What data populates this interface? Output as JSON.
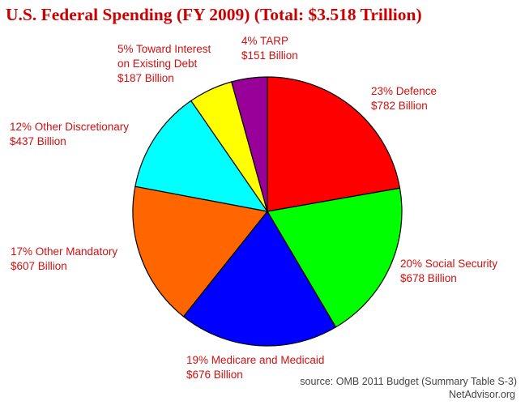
{
  "chart_data": {
    "type": "pie",
    "title": "U.S. Federal Spending (FY 2009) (Total: $3.518 Trillion)",
    "slices": [
      {
        "label": "23% Defence",
        "value": 782,
        "value_label": "$782 Billion",
        "color": "#ff0000"
      },
      {
        "label": "20% Social Security",
        "value": 678,
        "value_label": "$678 Billion",
        "color": "#00ff00"
      },
      {
        "label": "19% Medicare and Medicaid",
        "value": 676,
        "value_label": "$676 Billion",
        "color": "#0000ff"
      },
      {
        "label": "17% Other Mandatory",
        "value": 607,
        "value_label": "$607 Billion",
        "color": "#ff6600"
      },
      {
        "label": "12% Other Discretionary",
        "value": 437,
        "value_label": "$437 Billion",
        "color": "#00ffff"
      },
      {
        "label": "5% Toward Interest on Existing Debt",
        "label_lines": [
          "5% Toward Interest",
          "on Existing Debt"
        ],
        "value": 187,
        "value_label": "$187 Billion",
        "color": "#ffff00"
      },
      {
        "label": "4% TARP",
        "value": 151,
        "value_label": "$151 Billion",
        "color": "#990099"
      }
    ],
    "start": "12 o'clock",
    "direction": "clockwise",
    "outline_color": "#000000"
  },
  "source": "source: OMB 2011 Budget (Summary Table S-3)",
  "site": "NetAdvisor.org"
}
